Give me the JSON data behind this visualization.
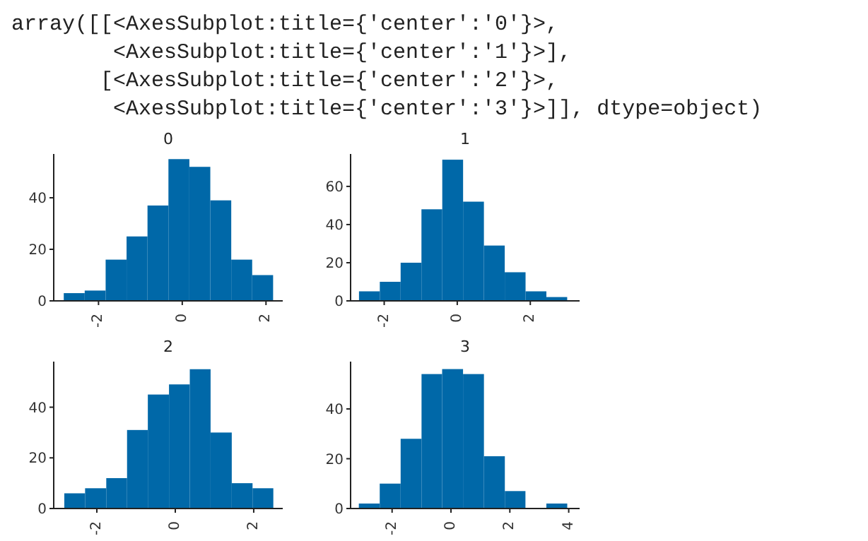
{
  "chart_data": [
    {
      "type": "other",
      "annotations": [
        "array([[<AxesSubplot:title={'center':'0'}>,",
        "        <AxesSubplot:title={'center':'1'}>],",
        "       [<AxesSubplot:title={'center':'2'}>,",
        "        <AxesSubplot:title={'center':'3'}>]], dtype=object)"
      ]
    },
    {
      "type": "histogram",
      "title": "0",
      "color": "#0068a8",
      "bins": [
        -2.83,
        -2.33,
        -1.83,
        -1.33,
        -0.83,
        -0.33,
        0.17,
        0.67,
        1.17,
        1.67,
        2.17
      ],
      "values": [
        3,
        4,
        16,
        25,
        37,
        55,
        52,
        39,
        16,
        10
      ],
      "xlim": [
        -3.07,
        2.4
      ],
      "ylim": [
        0,
        57
      ],
      "xticks": [
        -2,
        0,
        2
      ],
      "yticks": [
        0,
        20,
        40
      ],
      "grid": false
    },
    {
      "type": "histogram",
      "title": "1",
      "color": "#0068a8",
      "bins": [
        -2.69,
        -2.12,
        -1.55,
        -0.98,
        -0.41,
        0.16,
        0.73,
        1.3,
        1.87,
        2.44,
        3.01
      ],
      "values": [
        5,
        10,
        20,
        48,
        74,
        52,
        29,
        15,
        5,
        2
      ],
      "xlim": [
        -2.92,
        3.35
      ],
      "ylim": [
        0,
        77
      ],
      "xticks": [
        -2,
        0,
        2
      ],
      "yticks": [
        0,
        20,
        40,
        60
      ],
      "grid": false
    },
    {
      "type": "histogram",
      "title": "2",
      "color": "#0068a8",
      "bins": [
        -2.83,
        -2.3,
        -1.76,
        -1.23,
        -0.7,
        -0.16,
        0.37,
        0.9,
        1.44,
        1.97,
        2.5
      ],
      "values": [
        6,
        8,
        12,
        31,
        45,
        49,
        55,
        30,
        10,
        8
      ],
      "xlim": [
        -3.1,
        2.74
      ],
      "ylim": [
        0,
        58
      ],
      "xticks": [
        -2,
        0,
        2
      ],
      "yticks": [
        0,
        20,
        40
      ],
      "grid": false
    },
    {
      "type": "histogram",
      "title": "3",
      "color": "#0068a8",
      "bins": [
        -3.13,
        -2.42,
        -1.71,
        -1.0,
        -0.3,
        0.41,
        1.12,
        1.83,
        2.53,
        3.24,
        3.95
      ],
      "values": [
        2,
        10,
        28,
        54,
        56,
        54,
        21,
        7,
        0,
        2
      ],
      "xlim": [
        -3.41,
        4.37
      ],
      "ylim": [
        0,
        59
      ],
      "xticks": [
        -2,
        0,
        2,
        4
      ],
      "yticks": [
        0,
        20,
        40
      ],
      "grid": false
    }
  ]
}
